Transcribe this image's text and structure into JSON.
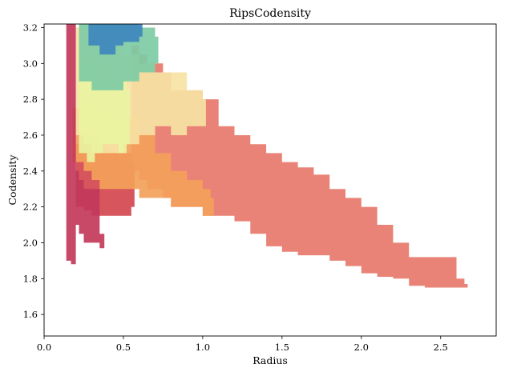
{
  "chart_data": {
    "type": "area",
    "title": "RipsCodensity",
    "xlabel": "Radius",
    "ylabel": "Codensity",
    "xlim": [
      0.0,
      2.85
    ],
    "ylim": [
      1.48,
      3.22
    ],
    "xticks": [
      "0.0",
      "0.5",
      "1.0",
      "1.5",
      "2.0",
      "2.5"
    ],
    "yticks": [
      "1.6",
      "1.8",
      "2.0",
      "2.2",
      "2.4",
      "2.6",
      "2.8",
      "3.0",
      "3.2"
    ],
    "grid": false,
    "legend": "none",
    "colormap": "Spectral",
    "series": [
      {
        "color": "#e8786b",
        "x": [
          0.55,
          0.6,
          0.65,
          0.75,
          0.8,
          0.9,
          1.0,
          1.1,
          1.2,
          1.3,
          1.4,
          1.5,
          1.6,
          1.7,
          1.8,
          1.9,
          2.0,
          2.1,
          2.2,
          2.3,
          2.4,
          2.5,
          2.6,
          2.65
        ],
        "y_top": [
          3.1,
          3.05,
          3.0,
          2.95,
          2.85,
          2.85,
          2.8,
          2.65,
          2.6,
          2.55,
          2.5,
          2.45,
          2.42,
          2.38,
          2.3,
          2.25,
          2.2,
          2.1,
          2.0,
          1.92,
          1.92,
          1.92,
          1.8,
          1.77
        ],
        "y_bottom": [
          2.4,
          2.35,
          2.3,
          2.25,
          2.2,
          2.2,
          2.15,
          2.15,
          2.12,
          2.05,
          1.98,
          1.95,
          1.93,
          1.93,
          1.9,
          1.87,
          1.83,
          1.81,
          1.8,
          1.76,
          1.75,
          1.75,
          1.75,
          1.75
        ]
      },
      {
        "color": "#d4464f",
        "x": [
          0.2,
          0.25,
          0.3,
          0.35,
          0.4,
          0.45,
          0.5,
          0.55
        ],
        "y_top": [
          2.55,
          2.6,
          2.6,
          2.55,
          2.5,
          2.5,
          2.5,
          2.45
        ],
        "y_bottom": [
          2.2,
          2.18,
          2.15,
          2.15,
          2.15,
          2.15,
          2.15,
          2.2
        ]
      },
      {
        "color": "#f3a15a",
        "x": [
          0.18,
          0.25,
          0.3,
          0.35,
          0.4,
          0.5,
          0.6,
          0.7,
          0.8,
          0.9,
          1.0,
          1.05
        ],
        "y_top": [
          2.75,
          2.8,
          2.8,
          2.75,
          2.7,
          2.7,
          2.6,
          2.5,
          2.4,
          2.35,
          2.3,
          2.25
        ],
        "y_bottom": [
          2.45,
          2.4,
          2.35,
          2.3,
          2.3,
          2.3,
          2.25,
          2.25,
          2.2,
          2.2,
          2.15,
          2.15
        ]
      },
      {
        "color": "#f6e3a4",
        "x": [
          0.2,
          0.25,
          0.3,
          0.4,
          0.5,
          0.6,
          0.7,
          0.8,
          0.9,
          1.0
        ],
        "y_top": [
          3.2,
          3.2,
          3.15,
          3.1,
          3.05,
          3.0,
          2.95,
          2.95,
          2.85,
          2.8
        ],
        "y_bottom": [
          2.6,
          2.55,
          2.5,
          2.5,
          2.55,
          2.6,
          2.65,
          2.6,
          2.65,
          2.65
        ]
      },
      {
        "color": "#e9f3a0",
        "x": [
          0.22,
          0.27,
          0.32,
          0.37,
          0.42,
          0.47,
          0.52
        ],
        "y_top": [
          3.0,
          3.05,
          3.0,
          2.95,
          2.9,
          2.9,
          2.85
        ],
        "y_bottom": [
          2.5,
          2.45,
          2.5,
          2.55,
          2.55,
          2.5,
          2.55
        ]
      },
      {
        "color": "#7ecba4",
        "x": [
          0.22,
          0.3,
          0.4,
          0.5,
          0.6,
          0.7
        ],
        "y_top": [
          3.22,
          3.22,
          3.22,
          3.22,
          3.2,
          3.15
        ],
        "y_bottom": [
          2.9,
          2.85,
          2.85,
          2.9,
          2.95,
          3.0
        ]
      },
      {
        "color": "#3d87bd",
        "x": [
          0.28,
          0.35,
          0.4,
          0.45,
          0.5,
          0.6
        ],
        "y_top": [
          3.22,
          3.22,
          3.22,
          3.22,
          3.22,
          3.22
        ],
        "y_bottom": [
          3.1,
          3.05,
          3.05,
          3.1,
          3.12,
          3.15
        ]
      },
      {
        "color": "#c2385a",
        "x": [
          0.14,
          0.15,
          0.17,
          0.18,
          0.2,
          0.22,
          0.25,
          0.35,
          0.36
        ],
        "y_top": [
          3.22,
          3.22,
          3.22,
          3.22,
          2.4,
          2.35,
          2.3,
          2.05,
          2.05
        ],
        "y_bottom": [
          1.9,
          1.9,
          1.88,
          1.88,
          2.1,
          2.05,
          2.0,
          1.97,
          1.97
        ]
      }
    ]
  }
}
